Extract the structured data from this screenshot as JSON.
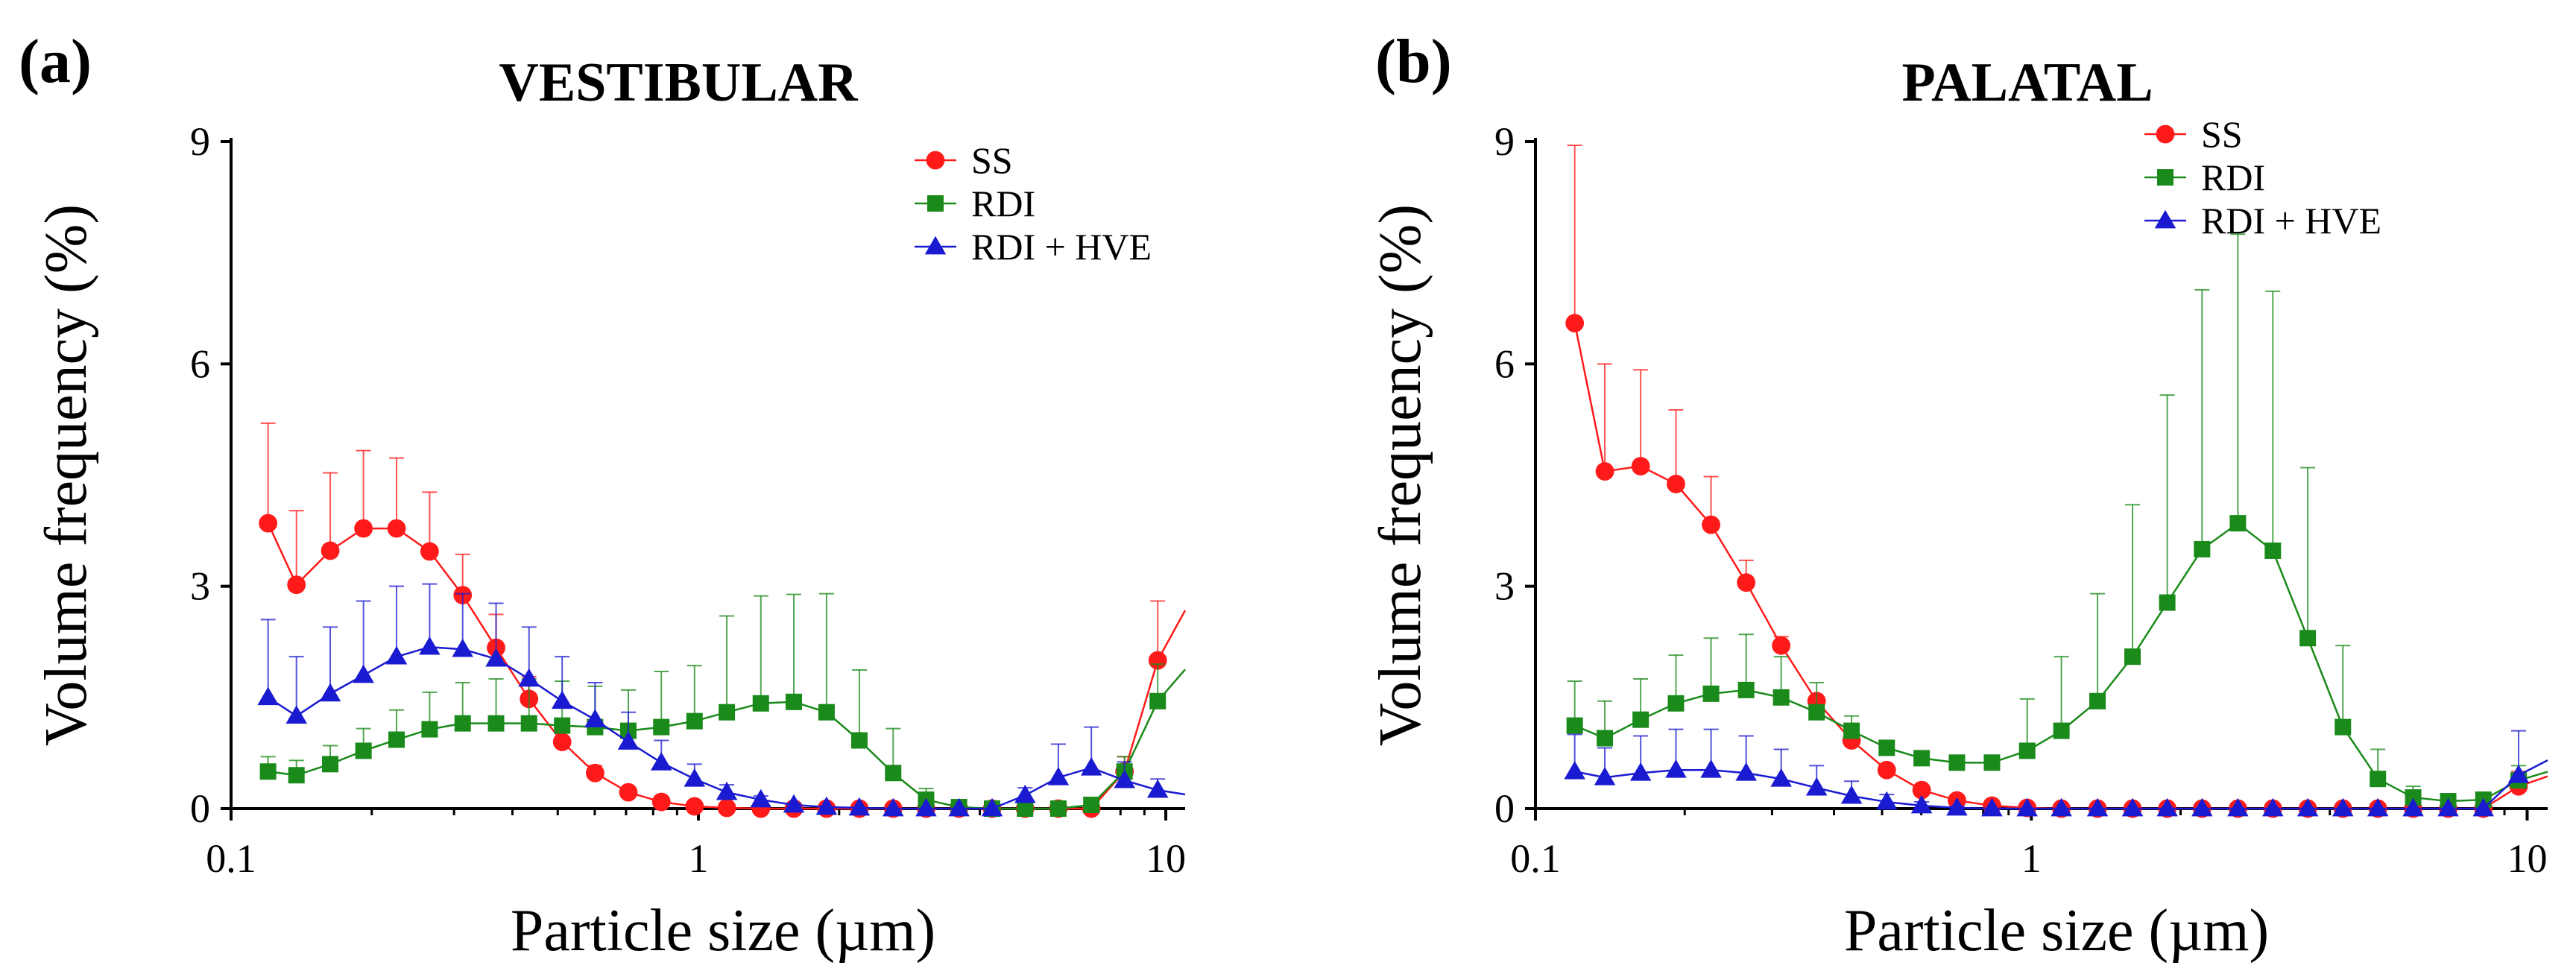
{
  "chart_data": [
    {
      "type": "scatter",
      "panel": "(a)",
      "title": "VESTIBULAR",
      "xlabel": "Particle size (µm)",
      "ylabel": "Volume frequency (%)",
      "xscale": "log",
      "xlim": [
        0.1,
        11
      ],
      "ylim": [
        0,
        9
      ],
      "xticks": [
        0.1,
        1,
        10
      ],
      "xtick_labels": [
        "0.1",
        "1",
        "10"
      ],
      "yticks": [
        0,
        3,
        6,
        9
      ],
      "ytick_labels": [
        "0",
        "3",
        "6",
        "9"
      ],
      "legend_position": "top-right",
      "series": [
        {
          "name": "SS",
          "color": "#ff1a1a",
          "marker": "circle",
          "x": [
            0.12,
            0.138,
            0.163,
            0.192,
            0.226,
            0.266,
            0.313,
            0.369,
            0.434,
            0.511,
            0.601,
            0.708,
            0.833,
            0.981,
            1.15,
            1.36,
            1.6,
            1.88,
            2.21,
            2.61,
            3.07,
            3.61,
            4.25,
            5.0,
            5.89,
            6.93,
            8.16,
            9.61
          ],
          "y": [
            3.85,
            3.02,
            3.48,
            3.78,
            3.78,
            3.47,
            2.88,
            2.17,
            1.48,
            0.9,
            0.48,
            0.22,
            0.09,
            0.03,
            0.01,
            0.0,
            0.0,
            0.0,
            0.0,
            0.0,
            0.0,
            0.0,
            0.0,
            0.0,
            0.0,
            0.0,
            0.5,
            2.0
          ],
          "err": [
            1.35,
            1.0,
            1.05,
            1.05,
            0.95,
            0.8,
            0.55,
            0.45,
            0.3,
            0.18,
            0.1,
            0.05,
            0.03,
            0.01,
            0,
            0,
            0,
            0,
            0,
            0,
            0,
            0,
            0,
            0,
            0,
            0,
            0.2,
            0.8
          ]
        },
        {
          "name": "RDI",
          "color": "#1a8a1a",
          "marker": "square",
          "x": [
            0.12,
            0.138,
            0.163,
            0.192,
            0.226,
            0.266,
            0.313,
            0.369,
            0.434,
            0.511,
            0.601,
            0.708,
            0.833,
            0.981,
            1.15,
            1.36,
            1.6,
            1.88,
            2.21,
            2.61,
            3.07,
            3.61,
            4.25,
            5.0,
            5.89,
            6.93,
            8.16,
            9.61
          ],
          "y": [
            0.5,
            0.45,
            0.6,
            0.78,
            0.93,
            1.07,
            1.15,
            1.15,
            1.15,
            1.12,
            1.1,
            1.05,
            1.1,
            1.18,
            1.3,
            1.42,
            1.44,
            1.3,
            0.92,
            0.48,
            0.12,
            0.02,
            0.0,
            0.0,
            0.0,
            0.05,
            0.5,
            1.45
          ],
          "err": [
            0.2,
            0.2,
            0.25,
            0.3,
            0.4,
            0.5,
            0.55,
            0.6,
            0.6,
            0.6,
            0.55,
            0.55,
            0.75,
            0.75,
            1.3,
            1.45,
            1.45,
            1.6,
            0.95,
            0.6,
            0.15,
            0.05,
            0,
            0,
            0,
            0.05,
            0.2,
            0.5
          ]
        },
        {
          "name": "RDI + HVE",
          "color": "#1a1ad1",
          "marker": "triangle",
          "x": [
            0.12,
            0.138,
            0.163,
            0.192,
            0.226,
            0.266,
            0.313,
            0.369,
            0.434,
            0.511,
            0.601,
            0.708,
            0.833,
            0.981,
            1.15,
            1.36,
            1.6,
            1.88,
            2.21,
            2.61,
            3.07,
            3.61,
            4.25,
            5.0,
            5.89,
            6.93,
            8.16,
            9.61
          ],
          "y": [
            1.5,
            1.25,
            1.55,
            1.8,
            2.05,
            2.18,
            2.15,
            2.02,
            1.75,
            1.45,
            1.2,
            0.9,
            0.62,
            0.4,
            0.22,
            0.12,
            0.05,
            0.02,
            0.01,
            0.0,
            0.0,
            0.0,
            0.0,
            0.18,
            0.42,
            0.55,
            0.38,
            0.25
          ],
          "err": [
            1.05,
            0.8,
            0.9,
            1.0,
            0.95,
            0.85,
            0.75,
            0.75,
            0.7,
            0.6,
            0.5,
            0.4,
            0.3,
            0.2,
            0.1,
            0.05,
            0.02,
            0,
            0,
            0,
            0,
            0,
            0,
            0.1,
            0.45,
            0.55,
            0.25,
            0.15
          ]
        }
      ]
    },
    {
      "type": "scatter",
      "panel": "(b)",
      "title": "PALATAL",
      "xlabel": "Particle size (µm)",
      "ylabel": "Volume frequency (%)",
      "xscale": "log",
      "xlim": [
        0.1,
        11
      ],
      "ylim": [
        0,
        9
      ],
      "xticks": [
        0.1,
        1,
        10
      ],
      "xtick_labels": [
        "0.1",
        "1",
        "10"
      ],
      "yticks": [
        0,
        3,
        6,
        9
      ],
      "ytick_labels": [
        "0",
        "3",
        "6",
        "9"
      ],
      "legend_position": "top-right",
      "series": [
        {
          "name": "SS",
          "color": "#ff1a1a",
          "marker": "circle",
          "x": [
            0.12,
            0.138,
            0.163,
            0.192,
            0.226,
            0.266,
            0.313,
            0.369,
            0.434,
            0.511,
            0.601,
            0.708,
            0.833,
            0.981,
            1.15,
            1.36,
            1.6,
            1.88,
            2.21,
            2.61,
            3.07,
            3.61,
            4.25,
            5.0,
            5.89,
            6.93,
            8.16,
            9.61
          ],
          "y": [
            6.55,
            4.55,
            4.62,
            4.38,
            3.83,
            3.05,
            2.2,
            1.45,
            0.92,
            0.52,
            0.25,
            0.11,
            0.04,
            0.01,
            0.0,
            0.0,
            0.0,
            0.0,
            0.0,
            0.0,
            0.0,
            0.0,
            0.0,
            0.0,
            0.0,
            0.0,
            0.0,
            0.3
          ],
          "err": [
            2.4,
            1.45,
            1.3,
            1.0,
            0.65,
            0.3,
            0.12,
            0.05,
            0.02,
            0.01,
            0,
            0,
            0,
            0,
            0,
            0,
            0,
            0,
            0,
            0,
            0,
            0,
            0,
            0,
            0,
            0,
            0,
            0.2
          ]
        },
        {
          "name": "RDI",
          "color": "#1a8a1a",
          "marker": "square",
          "x": [
            0.12,
            0.138,
            0.163,
            0.192,
            0.226,
            0.266,
            0.313,
            0.369,
            0.434,
            0.511,
            0.601,
            0.708,
            0.833,
            0.981,
            1.15,
            1.36,
            1.6,
            1.88,
            2.21,
            2.61,
            3.07,
            3.61,
            4.25,
            5.0,
            5.89,
            6.93,
            8.16,
            9.61
          ],
          "y": [
            1.12,
            0.95,
            1.2,
            1.42,
            1.55,
            1.6,
            1.5,
            1.3,
            1.05,
            0.82,
            0.68,
            0.62,
            0.62,
            0.78,
            1.05,
            1.45,
            2.05,
            2.78,
            3.5,
            3.85,
            3.48,
            2.3,
            1.1,
            0.4,
            0.15,
            0.1,
            0.12,
            0.38
          ],
          "err": [
            0.6,
            0.5,
            0.55,
            0.65,
            0.75,
            0.75,
            0.55,
            0.4,
            0.2,
            0.1,
            0.08,
            0.05,
            0.1,
            0.7,
            1.0,
            1.45,
            2.05,
            2.8,
            3.5,
            3.9,
            3.5,
            2.3,
            1.1,
            0.4,
            0.15,
            0.1,
            0.1,
            0.2
          ]
        },
        {
          "name": "RDI + HVE",
          "color": "#1a1ad1",
          "marker": "triangle",
          "x": [
            0.12,
            0.138,
            0.163,
            0.192,
            0.226,
            0.266,
            0.313,
            0.369,
            0.434,
            0.511,
            0.601,
            0.708,
            0.833,
            0.981,
            1.15,
            1.36,
            1.6,
            1.88,
            2.21,
            2.61,
            3.07,
            3.61,
            4.25,
            5.0,
            5.89,
            6.93,
            8.16,
            9.61
          ],
          "y": [
            0.5,
            0.42,
            0.48,
            0.52,
            0.52,
            0.48,
            0.4,
            0.28,
            0.17,
            0.09,
            0.04,
            0.01,
            0.0,
            0.0,
            0.0,
            0.0,
            0.0,
            0.0,
            0.0,
            0.0,
            0.0,
            0.0,
            0.0,
            0.0,
            0.0,
            0.0,
            0.0,
            0.45
          ],
          "err": [
            0.5,
            0.4,
            0.5,
            0.55,
            0.55,
            0.5,
            0.4,
            0.3,
            0.2,
            0.1,
            0.05,
            0.02,
            0,
            0,
            0,
            0,
            0,
            0,
            0,
            0,
            0,
            0,
            0,
            0,
            0,
            0,
            0,
            0.6
          ]
        }
      ]
    }
  ]
}
